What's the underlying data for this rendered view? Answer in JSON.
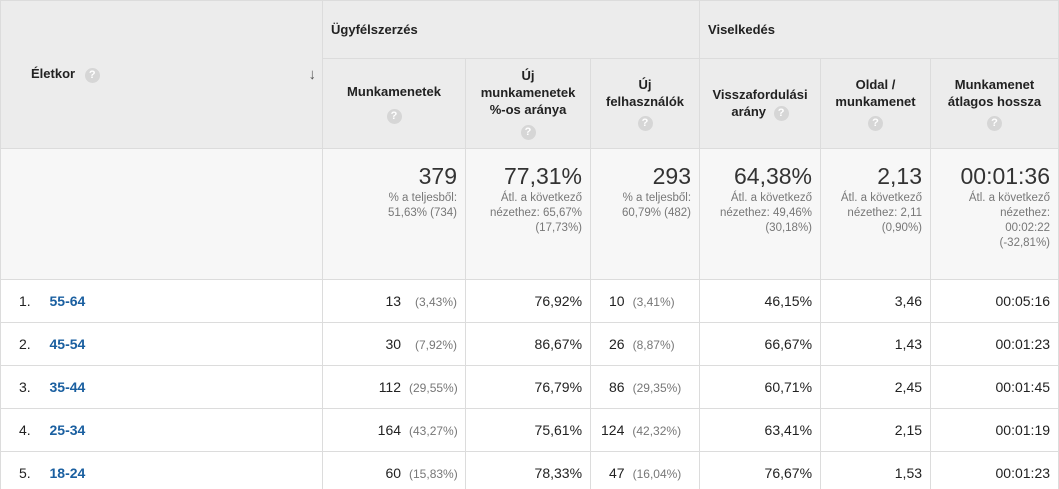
{
  "groups": {
    "acquisition": "Ügyfélszerzés",
    "behavior": "Viselkedés"
  },
  "dimension": {
    "label": "Életkor",
    "help": "?"
  },
  "columns": [
    {
      "name": "Munkamenetek"
    },
    {
      "name": "Új munkamenetek %-os aránya"
    },
    {
      "name": "Új felhasználók"
    },
    {
      "name": "Visszafordulási arány"
    },
    {
      "name": "Oldal / munkamenet"
    },
    {
      "name": "Munkamenet átlagos hossza"
    }
  ],
  "totals": [
    {
      "value": "379",
      "sub": "% a teljesből: 51,63% (734)"
    },
    {
      "value": "77,31%",
      "sub": "Átl. a következő nézethez: 65,67% (17,73%)"
    },
    {
      "value": "293",
      "sub": "% a teljesből: 60,79% (482)"
    },
    {
      "value": "64,38%",
      "sub": "Átl. a következő nézethez: 49,46% (30,18%)"
    },
    {
      "value": "2,13",
      "sub": "Átl. a következő nézethez: 2,11 (0,90%)"
    },
    {
      "value": "00:01:36",
      "sub": "Átl. a következő nézethez: 00:02:22 (-32,81%)"
    }
  ],
  "rows": [
    {
      "idx": "1.",
      "label": "55-64",
      "sessions": "13",
      "sessions_pct": "(3,43%)",
      "new_sessions_pct": "76,92%",
      "new_users": "10",
      "new_users_pct": "(3,41%)",
      "bounce": "46,15%",
      "pages": "3,46",
      "duration": "00:05:16"
    },
    {
      "idx": "2.",
      "label": "45-54",
      "sessions": "30",
      "sessions_pct": "(7,92%)",
      "new_sessions_pct": "86,67%",
      "new_users": "26",
      "new_users_pct": "(8,87%)",
      "bounce": "66,67%",
      "pages": "1,43",
      "duration": "00:01:23"
    },
    {
      "idx": "3.",
      "label": "35-44",
      "sessions": "112",
      "sessions_pct": "(29,55%)",
      "new_sessions_pct": "76,79%",
      "new_users": "86",
      "new_users_pct": "(29,35%)",
      "bounce": "60,71%",
      "pages": "2,45",
      "duration": "00:01:45"
    },
    {
      "idx": "4.",
      "label": "25-34",
      "sessions": "164",
      "sessions_pct": "(43,27%)",
      "new_sessions_pct": "75,61%",
      "new_users": "124",
      "new_users_pct": "(42,32%)",
      "bounce": "63,41%",
      "pages": "2,15",
      "duration": "00:01:19"
    },
    {
      "idx": "5.",
      "label": "18-24",
      "sessions": "60",
      "sessions_pct": "(15,83%)",
      "new_sessions_pct": "78,33%",
      "new_users": "47",
      "new_users_pct": "(16,04%)",
      "bounce": "76,67%",
      "pages": "1,53",
      "duration": "00:01:23"
    }
  ]
}
